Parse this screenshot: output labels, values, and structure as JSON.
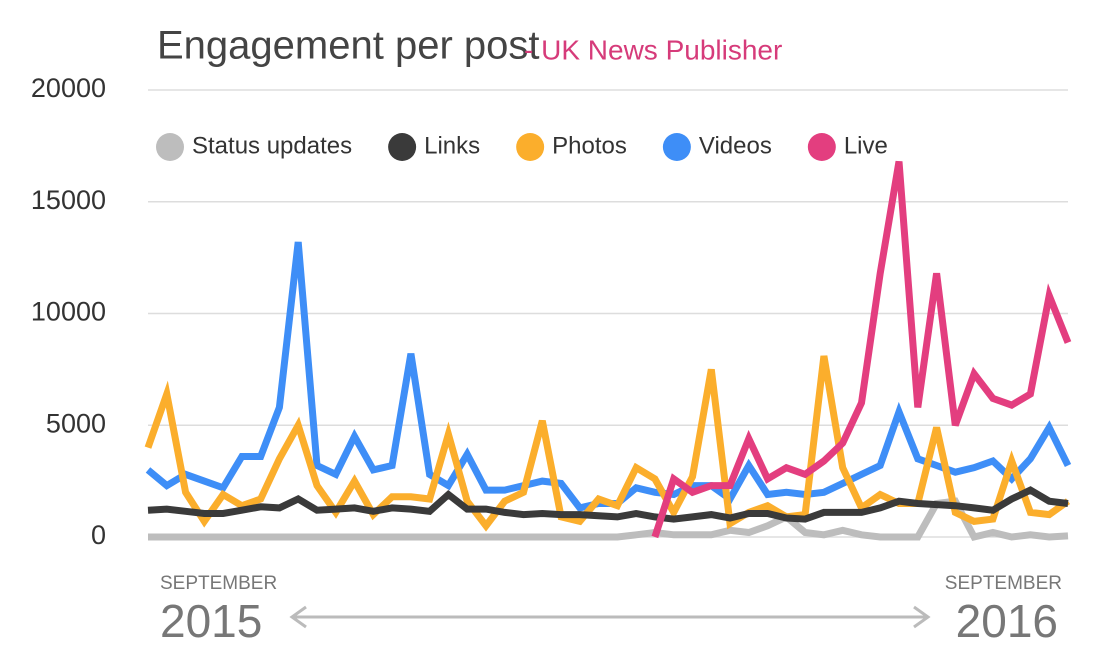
{
  "chart_data": {
    "type": "line",
    "title": "Engagement per post",
    "subtitle": "- UK News Publisher",
    "ylim": [
      0,
      20000
    ],
    "yticks": [
      0,
      5000,
      10000,
      15000,
      20000
    ],
    "grid": true,
    "legend": "top",
    "start_label": {
      "month": "SEPTEMBER",
      "year": "2015"
    },
    "end_label": {
      "month": "SEPTEMBER",
      "year": "2016"
    },
    "series": [
      {
        "name": "Status updates",
        "color": "#bdbdbd",
        "values": [
          0,
          0,
          0,
          0,
          0,
          0,
          0,
          0,
          0,
          0,
          0,
          0,
          0,
          0,
          0,
          0,
          0,
          0,
          0,
          0,
          0,
          0,
          0,
          0,
          0,
          0,
          100,
          200,
          100,
          100,
          100,
          300,
          200,
          500,
          900,
          200,
          100,
          300,
          100,
          0,
          0,
          0,
          1500,
          1600,
          0,
          200,
          0,
          100,
          0,
          50
        ]
      },
      {
        "name": "Links",
        "color": "#3a3a3a",
        "values": [
          1200,
          1250,
          1150,
          1050,
          1050,
          1200,
          1350,
          1300,
          1700,
          1200,
          1250,
          1300,
          1150,
          1300,
          1250,
          1150,
          1900,
          1250,
          1250,
          1100,
          1000,
          1050,
          1000,
          1000,
          950,
          900,
          1050,
          900,
          800,
          900,
          1000,
          850,
          1050,
          1050,
          850,
          800,
          1100,
          1100,
          1100,
          1300,
          1600,
          1500,
          1450,
          1400,
          1300,
          1200,
          1700,
          2100,
          1600,
          1500
        ]
      },
      {
        "name": "Photos",
        "color": "#fbae2c",
        "values": [
          4000,
          6400,
          2000,
          700,
          1900,
          1400,
          1700,
          3500,
          5000,
          2300,
          1100,
          2500,
          1000,
          1800,
          1800,
          1700,
          4600,
          1600,
          500,
          1600,
          2000,
          5200,
          900,
          700,
          1700,
          1400,
          3100,
          2600,
          1100,
          2700,
          7500,
          600,
          1100,
          1400,
          900,
          1000,
          8100,
          3100,
          1300,
          1900,
          1500,
          1500,
          4900,
          1100,
          700,
          800,
          3400,
          1100,
          1000,
          1600
        ]
      },
      {
        "name": "Videos",
        "color": "#3e8ef7",
        "values": [
          3000,
          2300,
          2800,
          2500,
          2200,
          3600,
          3600,
          5800,
          13200,
          3200,
          2800,
          4500,
          3000,
          3200,
          8200,
          2800,
          2300,
          3700,
          2100,
          2100,
          2300,
          2500,
          2400,
          1300,
          1500,
          1500,
          2200,
          2000,
          1900,
          2300,
          2300,
          1700,
          3200,
          1900,
          2000,
          1900,
          2000,
          2400,
          2800,
          3200,
          5600,
          3500,
          3200,
          2900,
          3100,
          3400,
          2600,
          3500,
          4900,
          3200
        ]
      },
      {
        "name": "Live",
        "color": "#e33e7f",
        "values": [
          null,
          null,
          null,
          null,
          null,
          null,
          null,
          null,
          null,
          null,
          null,
          null,
          null,
          null,
          null,
          null,
          null,
          null,
          null,
          null,
          null,
          null,
          null,
          null,
          null,
          null,
          null,
          0,
          2600,
          2000,
          2300,
          2300,
          4400,
          2600,
          3100,
          2800,
          3400,
          4200,
          6000,
          11800,
          16800,
          5800,
          11800,
          5000,
          7300,
          6200,
          5900,
          6400,
          10800,
          8700
        ]
      }
    ]
  }
}
